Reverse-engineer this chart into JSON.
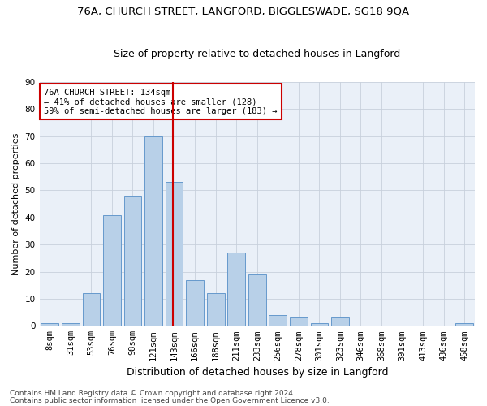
{
  "title1": "76A, CHURCH STREET, LANGFORD, BIGGLESWADE, SG18 9QA",
  "title2": "Size of property relative to detached houses in Langford",
  "xlabel": "Distribution of detached houses by size in Langford",
  "ylabel": "Number of detached properties",
  "categories": [
    "8sqm",
    "31sqm",
    "53sqm",
    "76sqm",
    "98sqm",
    "121sqm",
    "143sqm",
    "166sqm",
    "188sqm",
    "211sqm",
    "233sqm",
    "256sqm",
    "278sqm",
    "301sqm",
    "323sqm",
    "346sqm",
    "368sqm",
    "391sqm",
    "413sqm",
    "436sqm",
    "458sqm"
  ],
  "values": [
    1,
    1,
    12,
    41,
    48,
    70,
    53,
    17,
    12,
    27,
    19,
    4,
    3,
    1,
    3,
    0,
    0,
    0,
    0,
    0,
    1
  ],
  "bar_color": "#b8d0e8",
  "bar_edge_color": "#6699cc",
  "vline_x_index": 6,
  "vline_color": "#cc0000",
  "annotation_line1": "76A CHURCH STREET: 134sqm",
  "annotation_line2": "← 41% of detached houses are smaller (128)",
  "annotation_line3": "59% of semi-detached houses are larger (183) →",
  "annotation_box_color": "#cc0000",
  "ylim": [
    0,
    90
  ],
  "yticks": [
    0,
    10,
    20,
    30,
    40,
    50,
    60,
    70,
    80,
    90
  ],
  "footer1": "Contains HM Land Registry data © Crown copyright and database right 2024.",
  "footer2": "Contains public sector information licensed under the Open Government Licence v3.0.",
  "bg_color": "#ffffff",
  "plot_bg_color": "#eaf0f8",
  "grid_color": "#c8d0dc",
  "title1_fontsize": 9.5,
  "title2_fontsize": 9,
  "xlabel_fontsize": 9,
  "ylabel_fontsize": 8,
  "tick_fontsize": 7.5,
  "annotation_fontsize": 7.5,
  "footer_fontsize": 6.5
}
